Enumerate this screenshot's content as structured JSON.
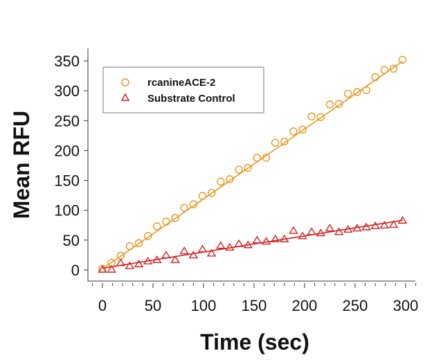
{
  "chart_data": {
    "type": "scatter",
    "title": "",
    "xlabel": "Time (sec)",
    "ylabel": "Mean RFU",
    "xlim": [
      -10,
      310
    ],
    "ylim": [
      -10,
      370
    ],
    "xticks": [
      0,
      50,
      100,
      150,
      200,
      250,
      300
    ],
    "yticks": [
      0,
      50,
      100,
      150,
      200,
      250,
      300,
      350
    ],
    "grid": false,
    "legend_position": "top-left",
    "x": [
      0,
      9,
      18,
      27,
      36,
      45,
      54,
      63,
      72,
      81,
      90,
      99,
      108,
      117,
      126,
      135,
      144,
      153,
      162,
      171,
      180,
      189,
      198,
      207,
      216,
      225,
      234,
      243,
      252,
      261,
      270,
      279,
      288,
      297
    ],
    "series": [
      {
        "name": "rcanineACE-2",
        "marker": "circle",
        "color": "#E8961E",
        "values": [
          2,
          12,
          24,
          40,
          45,
          57,
          73,
          81,
          87,
          104,
          110,
          124,
          129,
          148,
          152,
          168,
          171,
          188,
          188,
          213,
          215,
          232,
          235,
          257,
          256,
          277,
          278,
          295,
          298,
          301,
          323,
          335,
          337,
          352
        ],
        "fit": {
          "slope": 1.17,
          "intercept": 2
        }
      },
      {
        "name": "Substrate Control",
        "marker": "triangle",
        "color": "#D42020",
        "values": [
          1,
          1,
          12,
          7,
          10,
          15,
          17,
          25,
          17,
          32,
          25,
          35,
          28,
          41,
          38,
          44,
          42,
          50,
          48,
          52,
          52,
          66,
          57,
          64,
          62,
          70,
          64,
          68,
          70,
          72,
          74,
          75,
          76,
          83
        ],
        "fit": {
          "slope": 0.27,
          "intercept": 3
        }
      }
    ]
  }
}
